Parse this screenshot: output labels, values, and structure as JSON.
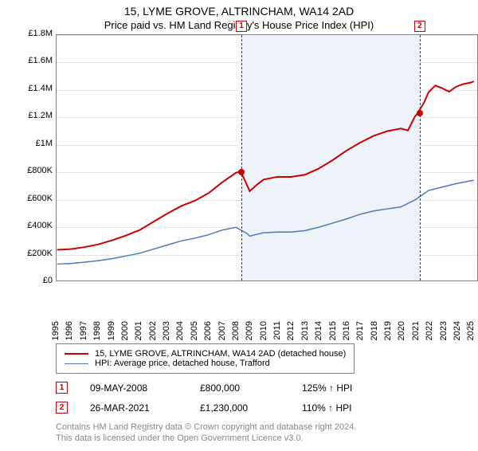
{
  "title": "15, LYME GROVE, ALTRINCHAM, WA14 2AD",
  "subtitle": "Price paid vs. HM Land Registry's House Price Index (HPI)",
  "chart": {
    "type": "line",
    "xlim": [
      1995,
      2025.5
    ],
    "ylim": [
      0,
      1800000
    ],
    "ytick_step": 200000,
    "yticks": [
      "£0",
      "£200K",
      "£400K",
      "£600K",
      "£800K",
      "£1M",
      "£1.2M",
      "£1.4M",
      "£1.6M",
      "£1.8M"
    ],
    "xticks": [
      1995,
      1996,
      1997,
      1998,
      1999,
      2000,
      2001,
      2002,
      2003,
      2004,
      2005,
      2006,
      2007,
      2008,
      2009,
      2010,
      2011,
      2012,
      2013,
      2014,
      2015,
      2016,
      2017,
      2018,
      2019,
      2020,
      2021,
      2022,
      2023,
      2024,
      2025
    ],
    "background_color": "#ffffff",
    "grid_color": "#e5e5e5",
    "border_color": "#808080",
    "band": {
      "start": 2008.35,
      "end": 2021.23,
      "color": "#eef3fa"
    },
    "series": [
      {
        "name": "property",
        "label": "15, LYME GROVE, ALTRINCHAM, WA14 2AD (detached house)",
        "color": "#cc0000",
        "width": 2,
        "points": [
          [
            1995,
            225000
          ],
          [
            1996,
            230000
          ],
          [
            1997,
            245000
          ],
          [
            1998,
            265000
          ],
          [
            1999,
            295000
          ],
          [
            2000,
            330000
          ],
          [
            2001,
            370000
          ],
          [
            2002,
            430000
          ],
          [
            2003,
            490000
          ],
          [
            2004,
            545000
          ],
          [
            2005,
            585000
          ],
          [
            2006,
            640000
          ],
          [
            2007,
            720000
          ],
          [
            2008,
            790000
          ],
          [
            2008.35,
            800000
          ],
          [
            2008.8,
            700000
          ],
          [
            2009,
            655000
          ],
          [
            2009.5,
            700000
          ],
          [
            2010,
            740000
          ],
          [
            2011,
            760000
          ],
          [
            2012,
            760000
          ],
          [
            2013,
            775000
          ],
          [
            2014,
            820000
          ],
          [
            2015,
            880000
          ],
          [
            2016,
            950000
          ],
          [
            2017,
            1010000
          ],
          [
            2018,
            1060000
          ],
          [
            2019,
            1095000
          ],
          [
            2020,
            1115000
          ],
          [
            2020.5,
            1100000
          ],
          [
            2021,
            1200000
          ],
          [
            2021.23,
            1230000
          ],
          [
            2021.7,
            1310000
          ],
          [
            2022,
            1380000
          ],
          [
            2022.5,
            1430000
          ],
          [
            2023,
            1410000
          ],
          [
            2023.5,
            1385000
          ],
          [
            2024,
            1420000
          ],
          [
            2024.5,
            1440000
          ],
          [
            2025,
            1450000
          ],
          [
            2025.3,
            1460000
          ]
        ]
      },
      {
        "name": "hpi",
        "label": "HPI: Average price, detached house, Trafford",
        "color": "#4a7ab8",
        "width": 1.5,
        "points": [
          [
            1995,
            120000
          ],
          [
            1996,
            125000
          ],
          [
            1997,
            135000
          ],
          [
            1998,
            145000
          ],
          [
            1999,
            160000
          ],
          [
            2000,
            180000
          ],
          [
            2001,
            200000
          ],
          [
            2002,
            230000
          ],
          [
            2003,
            260000
          ],
          [
            2004,
            290000
          ],
          [
            2005,
            310000
          ],
          [
            2006,
            335000
          ],
          [
            2007,
            370000
          ],
          [
            2008,
            390000
          ],
          [
            2008.8,
            345000
          ],
          [
            2009,
            325000
          ],
          [
            2010,
            350000
          ],
          [
            2011,
            355000
          ],
          [
            2012,
            355000
          ],
          [
            2013,
            365000
          ],
          [
            2014,
            390000
          ],
          [
            2015,
            420000
          ],
          [
            2016,
            450000
          ],
          [
            2017,
            485000
          ],
          [
            2018,
            510000
          ],
          [
            2019,
            525000
          ],
          [
            2020,
            540000
          ],
          [
            2021,
            590000
          ],
          [
            2022,
            660000
          ],
          [
            2023,
            685000
          ],
          [
            2024,
            710000
          ],
          [
            2025,
            730000
          ],
          [
            2025.3,
            735000
          ]
        ]
      }
    ],
    "sale_markers": [
      {
        "n": "1",
        "x": 2008.35,
        "y": 800000
      },
      {
        "n": "2",
        "x": 2021.23,
        "y": 1230000
      }
    ],
    "marker_box_y_offset": -18
  },
  "legend_header": "legend",
  "sales": [
    {
      "n": "1",
      "date": "09-MAY-2008",
      "price": "£800,000",
      "pct": "125%",
      "arrow": "↑",
      "suffix": "HPI"
    },
    {
      "n": "2",
      "date": "26-MAR-2021",
      "price": "£1,230,000",
      "pct": "110%",
      "arrow": "↑",
      "suffix": "HPI"
    }
  ],
  "credits": {
    "line1": "Contains HM Land Registry data © Crown copyright and database right 2024.",
    "line2": "This data is licensed under the Open Government Licence v3.0."
  }
}
